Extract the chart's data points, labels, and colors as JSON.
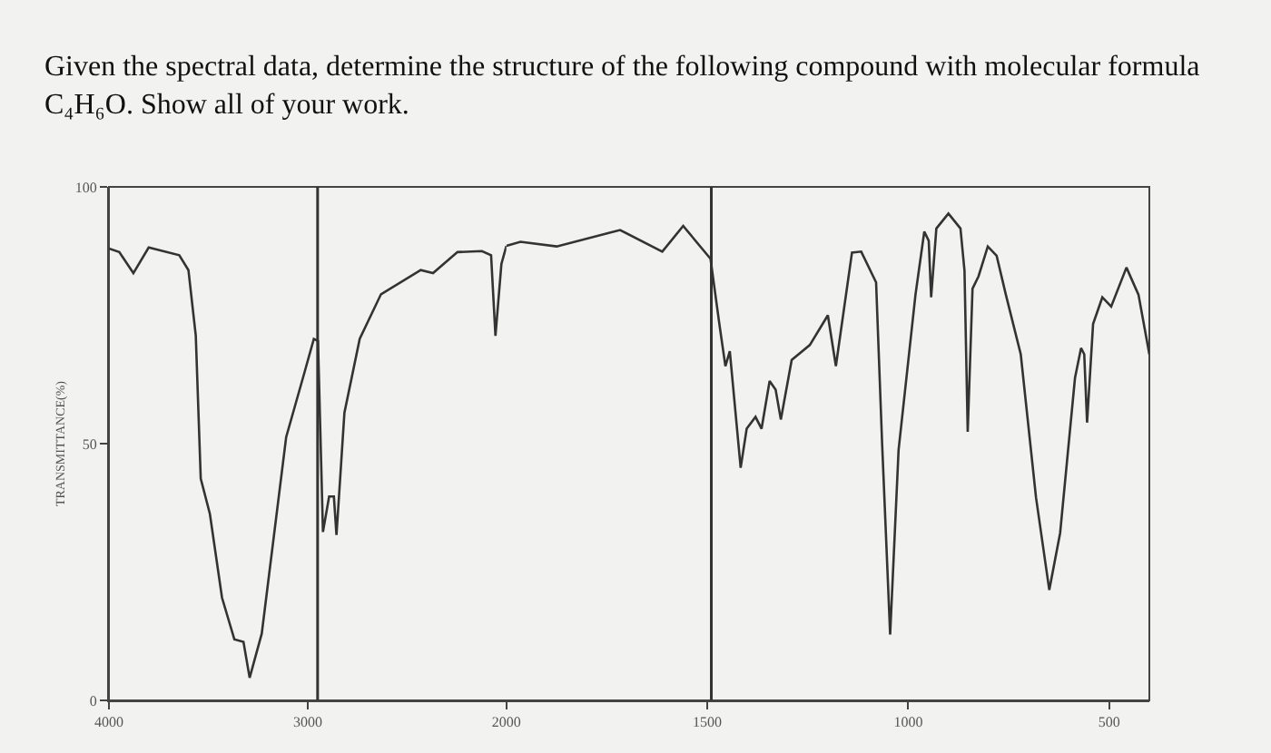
{
  "chart_data": [
    {
      "type": "line",
      "title": "Given the spectral data, determine the structure of the following compound with molecular formula\nC₄H₆O. Show all of your work.",
      "ylabel": "TRANSMITTANCE(%)",
      "xlim": [
        4000,
        2000
      ],
      "xticks": [
        4000,
        3000,
        2000
      ],
      "ylim": [
        0,
        100
      ],
      "yticks": [
        0,
        50,
        100
      ],
      "grid": false,
      "marker": "none",
      "line_style": "solid",
      "ref_lines": [
        {
          "axis": "x",
          "value": 2950,
          "label": null,
          "color": "#333333"
        }
      ],
      "series": [
        {
          "color": "#333333",
          "x": [
            4000,
            3948,
            3877,
            3800,
            3646,
            3600,
            3563,
            3538,
            3492,
            3431,
            3369,
            3323,
            3292,
            3231,
            3108,
            3015,
            2969,
            2948,
            2923,
            2892,
            2868,
            2855,
            2815,
            2738,
            2631,
            2431,
            2369,
            2246,
            2123,
            2077,
            2055,
            2025,
            2000
          ],
          "values": [
            88,
            87.3,
            83.2,
            88.2,
            86.7,
            83.8,
            71,
            43.2,
            36.3,
            20,
            11.9,
            11.4,
            4.4,
            13,
            51.3,
            64,
            70.4,
            70,
            32.8,
            39.7,
            39.7,
            32.2,
            56,
            70.4,
            79.1,
            83.8,
            83.2,
            87.3,
            87.5,
            86.7,
            71,
            85,
            88.5
          ]
        }
      ]
    },
    {
      "type": "line",
      "xlim": [
        2000,
        400
      ],
      "xticks": [
        1500,
        1000,
        500
      ],
      "ylim": [
        0,
        100
      ],
      "yticks": [
        0,
        50,
        100
      ],
      "tick_labels": "x",
      "grid": false,
      "marker": "none",
      "line_style": "solid",
      "ref_lines": [
        {
          "axis": "x",
          "value": 1490,
          "label": null,
          "color": "#333333"
        }
      ],
      "series": [
        {
          "color": "#333333",
          "x": [
            2000,
            1965,
            1875,
            1717,
            1612,
            1560,
            1492,
            1470,
            1455,
            1444,
            1417,
            1402,
            1380,
            1365,
            1345,
            1330,
            1317,
            1290,
            1245,
            1200,
            1180,
            1140,
            1117,
            1080,
            1065,
            1045,
            1024,
            982,
            960,
            949,
            943,
            930,
            900,
            870,
            860,
            852,
            840,
            825,
            802,
            780,
            757,
            720,
            682,
            649,
            622,
            585,
            570,
            562,
            555,
            540,
            517,
            495,
            457,
            427,
            400
          ],
          "values": [
            88.5,
            89.3,
            88.4,
            91.6,
            87.4,
            92.4,
            86,
            73.3,
            65.1,
            68,
            45.3,
            52.9,
            55.2,
            52.9,
            62.2,
            60.5,
            54.7,
            66.3,
            69.2,
            75,
            65.1,
            87.2,
            87.4,
            81.4,
            50,
            12.8,
            48.8,
            79,
            91.3,
            89.5,
            78.5,
            91.9,
            94.8,
            91.9,
            83.7,
            52.3,
            80.2,
            82.6,
            88.4,
            86.6,
            79,
            67.4,
            39.5,
            21.5,
            32.6,
            62.8,
            68.6,
            67.4,
            54.1,
            73.3,
            78.5,
            76.7,
            84.3,
            79,
            67.4
          ]
        }
      ]
    }
  ]
}
